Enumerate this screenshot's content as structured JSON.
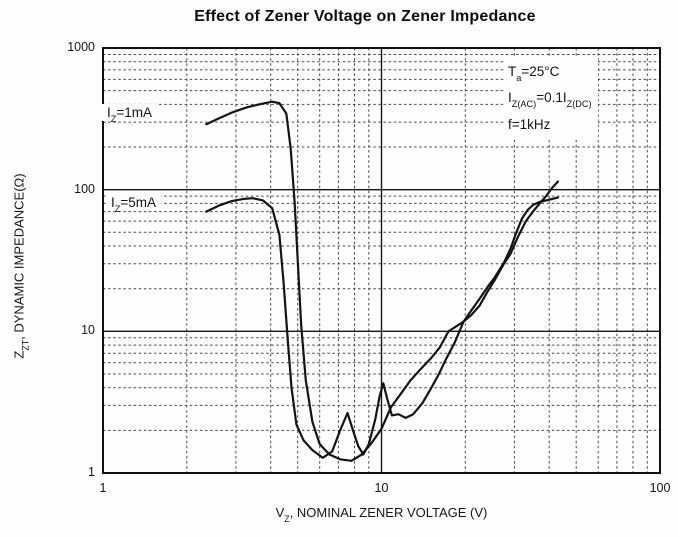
{
  "accent_ink_color": "#141414",
  "background_color": "#fefefe",
  "chart_data": {
    "type": "line",
    "title": "Effect of Zener Voltage on Zener Impedance",
    "xlabel": "VZ, NOMINAL ZENER VOLTAGE (V)",
    "ylabel": "ZZT, DYNAMIC IMPEDANCE(Ω)",
    "xlabel_rich": [
      {
        "t": "V"
      },
      {
        "t": "Z",
        "sub": true
      },
      {
        "t": ", NOMINAL ZENER VOLTAGE (V)"
      }
    ],
    "ylabel_rich": [
      {
        "t": "Z"
      },
      {
        "t": "ZT",
        "sub": true
      },
      {
        "t": ", DYNAMIC IMPEDANCE(Ω)"
      }
    ],
    "x_scale": "log",
    "y_scale": "log",
    "xlim": [
      1,
      100
    ],
    "ylim": [
      1,
      1000
    ],
    "x_ticks": [
      1,
      10,
      100
    ],
    "y_ticks": [
      1,
      10,
      100,
      1000
    ],
    "grid": "log decades solid, minor subdivisions dotted, both axes",
    "legend_position": "inline labels at left of curves",
    "annotations": {
      "lines_plain": [
        "Ta=25°C",
        "IZ(AC)=0.1IZ(DC)",
        "f=1kHz"
      ],
      "line1_rich": [
        {
          "t": "T"
        },
        {
          "t": "a",
          "sub": true
        },
        {
          "t": "=25°C"
        }
      ],
      "line2_rich": [
        {
          "t": "I"
        },
        {
          "t": "Z(AC)",
          "sub": true
        },
        {
          "t": "=0.1I"
        },
        {
          "t": "Z(DC)",
          "sub": true
        }
      ],
      "line3_rich": [
        {
          "t": "f=1kHz"
        }
      ]
    },
    "series": [
      {
        "name": "IZ=1mA",
        "label_rich": [
          {
            "t": "I"
          },
          {
            "t": "Z",
            "sub": true
          },
          {
            "t": "=1mA"
          }
        ],
        "points": [
          [
            2.35,
            290
          ],
          [
            2.6,
            318
          ],
          [
            2.9,
            350
          ],
          [
            3.3,
            382
          ],
          [
            3.7,
            403
          ],
          [
            4.05,
            418
          ],
          [
            4.3,
            408
          ],
          [
            4.55,
            345
          ],
          [
            4.72,
            195
          ],
          [
            4.88,
            80
          ],
          [
            5.0,
            32
          ],
          [
            5.15,
            11
          ],
          [
            5.35,
            4.5
          ],
          [
            5.65,
            2.3
          ],
          [
            6.0,
            1.6
          ],
          [
            6.5,
            1.35
          ],
          [
            7.1,
            1.25
          ],
          [
            7.8,
            1.22
          ],
          [
            8.5,
            1.35
          ],
          [
            9.2,
            1.62
          ],
          [
            10,
            2.05
          ],
          [
            10.8,
            2.9
          ],
          [
            11.7,
            3.6
          ],
          [
            12.7,
            4.5
          ],
          [
            13.8,
            5.4
          ],
          [
            15,
            6.4
          ],
          [
            16.2,
            7.7
          ],
          [
            17.4,
            10
          ],
          [
            18.5,
            10.8
          ],
          [
            19.7,
            11.7
          ],
          [
            21,
            13
          ],
          [
            22.5,
            15.2
          ],
          [
            24,
            19
          ],
          [
            25.5,
            23
          ],
          [
            27.5,
            30
          ],
          [
            29,
            35
          ],
          [
            31,
            47
          ],
          [
            33,
            60
          ],
          [
            35,
            70
          ],
          [
            37,
            80
          ],
          [
            39,
            90
          ],
          [
            41,
            103
          ],
          [
            43,
            114
          ]
        ]
      },
      {
        "name": "IZ=5mA",
        "label_rich": [
          {
            "t": "I"
          },
          {
            "t": "Z",
            "sub": true
          },
          {
            "t": "=5mA"
          }
        ],
        "points": [
          [
            2.35,
            70
          ],
          [
            2.6,
            77
          ],
          [
            2.9,
            83
          ],
          [
            3.2,
            86
          ],
          [
            3.45,
            87
          ],
          [
            3.75,
            84
          ],
          [
            4.05,
            74
          ],
          [
            4.3,
            48
          ],
          [
            4.45,
            22
          ],
          [
            4.6,
            9
          ],
          [
            4.75,
            4
          ],
          [
            4.95,
            2.2
          ],
          [
            5.25,
            1.7
          ],
          [
            5.65,
            1.45
          ],
          [
            6.15,
            1.28
          ],
          [
            6.65,
            1.42
          ],
          [
            7.1,
            2.0
          ],
          [
            7.55,
            2.65
          ],
          [
            7.9,
            2.0
          ],
          [
            8.25,
            1.55
          ],
          [
            8.6,
            1.35
          ],
          [
            9.0,
            1.6
          ],
          [
            9.5,
            2.4
          ],
          [
            9.85,
            3.5
          ],
          [
            10.15,
            4.3
          ],
          [
            10.5,
            3.3
          ],
          [
            10.9,
            2.55
          ],
          [
            11.5,
            2.6
          ],
          [
            12.2,
            2.45
          ],
          [
            13,
            2.6
          ],
          [
            14,
            3.1
          ],
          [
            15,
            3.9
          ],
          [
            16,
            4.9
          ],
          [
            17,
            6.3
          ],
          [
            18.3,
            8.3
          ],
          [
            19.7,
            11.7
          ],
          [
            21,
            14
          ],
          [
            22.5,
            17
          ],
          [
            24,
            20.5
          ],
          [
            25.5,
            24
          ],
          [
            27.5,
            30.5
          ],
          [
            29,
            38
          ],
          [
            30.5,
            50
          ],
          [
            32,
            63
          ],
          [
            33.5,
            72
          ],
          [
            35,
            78
          ],
          [
            37,
            82
          ],
          [
            39,
            84
          ],
          [
            41,
            86
          ],
          [
            43,
            88
          ]
        ]
      }
    ]
  }
}
